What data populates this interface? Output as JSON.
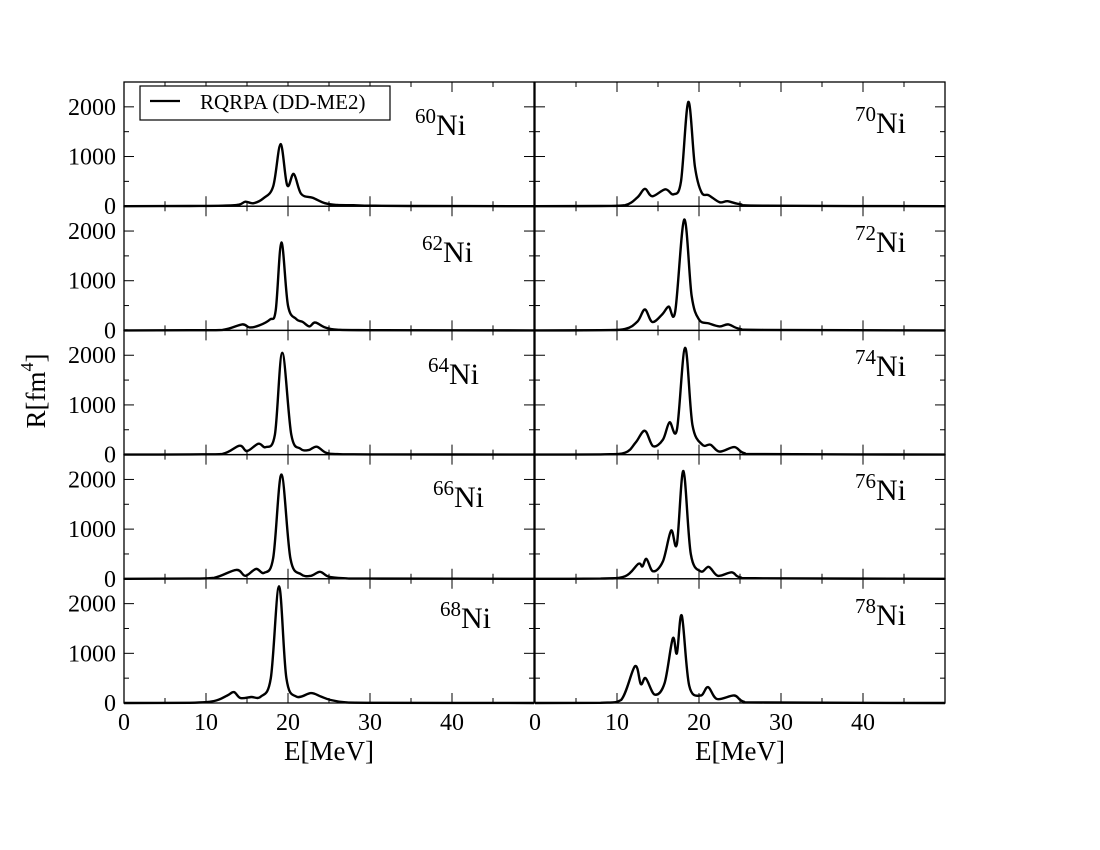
{
  "figure": {
    "ylabel": "R[fm",
    "ylabel_sup": "4",
    "ylabel_close": "]",
    "xlabel": "E[MeV]",
    "legend": "RQRPA (DD-ME2)",
    "line_color": "#000000",
    "background": "#ffffff"
  },
  "chart_data": [
    {
      "type": "line",
      "nucleus_mass": "60",
      "nucleus_symbol": "Ni",
      "column": "left",
      "row": 0,
      "xlim": [
        0,
        50
      ],
      "ylim": [
        0,
        2500
      ],
      "xticks": [
        0,
        10,
        20,
        30,
        40
      ],
      "yticks": [
        0,
        1000,
        2000
      ],
      "series": [
        {
          "name": "RQRPA (DD-ME2)",
          "x": [
            0,
            8,
            12,
            14,
            14.8,
            15.8,
            17,
            18.2,
            19.1,
            19.9,
            20.7,
            21.6,
            23,
            24.5,
            26,
            28,
            30,
            35,
            50
          ],
          "y": [
            0,
            5,
            10,
            30,
            90,
            60,
            160,
            400,
            1250,
            420,
            650,
            250,
            170,
            60,
            25,
            20,
            10,
            5,
            0
          ]
        }
      ]
    },
    {
      "type": "line",
      "nucleus_mass": "70",
      "nucleus_symbol": "Ni",
      "column": "right",
      "row": 0,
      "xlim": [
        0,
        50
      ],
      "ylim": [
        0,
        2500
      ],
      "xticks": [
        0,
        10,
        20,
        30,
        40
      ],
      "yticks": [
        0,
        1000,
        2000
      ],
      "series": [
        {
          "name": "RQRPA (DD-ME2)",
          "x": [
            0,
            8,
            11,
            12.5,
            13.4,
            14.3,
            15.9,
            16.9,
            17.8,
            18.7,
            19.5,
            20.3,
            21.2,
            22.5,
            23.5,
            25,
            28,
            50
          ],
          "y": [
            0,
            5,
            20,
            180,
            350,
            200,
            340,
            240,
            500,
            2100,
            800,
            280,
            220,
            80,
            100,
            40,
            10,
            0
          ]
        }
      ]
    },
    {
      "type": "line",
      "nucleus_mass": "62",
      "nucleus_symbol": "Ni",
      "column": "left",
      "row": 1,
      "xlim": [
        0,
        50
      ],
      "ylim": [
        0,
        2500
      ],
      "xticks": [
        0,
        10,
        20,
        30,
        40
      ],
      "yticks": [
        0,
        1000,
        2000
      ],
      "series": [
        {
          "name": "RQRPA (DD-ME2)",
          "x": [
            0,
            8,
            12,
            14.4,
            15.3,
            16.5,
            17.8,
            18.5,
            19.2,
            20,
            21,
            21.8,
            22.6,
            23.3,
            24.5,
            26,
            30,
            50
          ],
          "y": [
            0,
            5,
            10,
            120,
            60,
            100,
            220,
            400,
            1770,
            500,
            230,
            170,
            80,
            160,
            60,
            15,
            5,
            0
          ]
        }
      ]
    },
    {
      "type": "line",
      "nucleus_mass": "72",
      "nucleus_symbol": "Ni",
      "column": "right",
      "row": 1,
      "xlim": [
        0,
        50
      ],
      "ylim": [
        0,
        2500
      ],
      "xticks": [
        0,
        10,
        20,
        30,
        40
      ],
      "yticks": [
        0,
        1000,
        2000
      ],
      "series": [
        {
          "name": "RQRPA (DD-ME2)",
          "x": [
            0,
            8,
            11,
            12.5,
            13.4,
            14.3,
            15.5,
            16.3,
            17.1,
            18.2,
            19.1,
            20,
            21.2,
            22.5,
            23.6,
            25,
            28,
            50
          ],
          "y": [
            0,
            5,
            30,
            180,
            420,
            170,
            320,
            480,
            380,
            2230,
            700,
            220,
            140,
            80,
            120,
            30,
            10,
            0
          ]
        }
      ]
    },
    {
      "type": "line",
      "nucleus_mass": "64",
      "nucleus_symbol": "Ni",
      "column": "left",
      "row": 2,
      "xlim": [
        0,
        50
      ],
      "ylim": [
        0,
        2500
      ],
      "xticks": [
        0,
        10,
        20,
        30,
        40
      ],
      "yticks": [
        0,
        1000,
        2000
      ],
      "series": [
        {
          "name": "RQRPA (DD-ME2)",
          "x": [
            0,
            8,
            12,
            14.1,
            15,
            16.4,
            17.3,
            18.4,
            19.3,
            20.4,
            21.5,
            22.5,
            23.5,
            24.6,
            26,
            30,
            50
          ],
          "y": [
            0,
            5,
            15,
            180,
            70,
            220,
            150,
            400,
            2050,
            400,
            120,
            90,
            160,
            40,
            10,
            5,
            0
          ]
        }
      ]
    },
    {
      "type": "line",
      "nucleus_mass": "74",
      "nucleus_symbol": "Ni",
      "column": "right",
      "row": 2,
      "xlim": [
        0,
        50
      ],
      "ylim": [
        0,
        2500
      ],
      "xticks": [
        0,
        10,
        20,
        30,
        40
      ],
      "yticks": [
        0,
        1000,
        2000
      ],
      "series": [
        {
          "name": "RQRPA (DD-ME2)",
          "x": [
            0,
            8,
            11,
            12.3,
            13.4,
            14.4,
            15.6,
            16.4,
            17.3,
            18.3,
            19.2,
            20.4,
            21.4,
            22.5,
            24.3,
            25.5,
            28,
            50
          ],
          "y": [
            0,
            5,
            40,
            250,
            480,
            170,
            300,
            650,
            500,
            2150,
            600,
            200,
            200,
            60,
            150,
            30,
            10,
            0
          ]
        }
      ]
    },
    {
      "type": "line",
      "nucleus_mass": "66",
      "nucleus_symbol": "Ni",
      "column": "left",
      "row": 3,
      "xlim": [
        0,
        50
      ],
      "ylim": [
        0,
        2500
      ],
      "xticks": [
        0,
        10,
        20,
        30,
        40
      ],
      "yticks": [
        0,
        1000,
        2000
      ],
      "series": [
        {
          "name": "RQRPA (DD-ME2)",
          "x": [
            0,
            8,
            11,
            13.7,
            14.8,
            16.1,
            17.1,
            18.2,
            19.2,
            20.3,
            21.6,
            22.8,
            23.9,
            25,
            27,
            30,
            50
          ],
          "y": [
            0,
            5,
            20,
            180,
            60,
            200,
            120,
            420,
            2100,
            400,
            90,
            60,
            140,
            40,
            10,
            5,
            0
          ]
        }
      ]
    },
    {
      "type": "line",
      "nucleus_mass": "76",
      "nucleus_symbol": "Ni",
      "column": "right",
      "row": 3,
      "xlim": [
        0,
        50
      ],
      "ylim": [
        0,
        2500
      ],
      "xticks": [
        0,
        10,
        20,
        30,
        40
      ],
      "yticks": [
        0,
        1000,
        2000
      ],
      "series": [
        {
          "name": "RQRPA (DD-ME2)",
          "x": [
            0,
            8,
            11,
            12.6,
            13.1,
            13.6,
            14.4,
            15.6,
            16.6,
            17.3,
            18.1,
            19,
            20.2,
            21.2,
            22.3,
            24,
            25,
            28,
            50
          ],
          "y": [
            0,
            5,
            50,
            300,
            250,
            400,
            150,
            350,
            970,
            700,
            2170,
            500,
            150,
            240,
            60,
            130,
            30,
            10,
            0
          ]
        }
      ]
    },
    {
      "type": "line",
      "nucleus_mass": "68",
      "nucleus_symbol": "Ni",
      "column": "left",
      "row": 4,
      "xlim": [
        0,
        50
      ],
      "ylim": [
        0,
        2500
      ],
      "xticks": [
        0,
        10,
        20,
        30,
        40
      ],
      "yticks": [
        0,
        1000,
        2000
      ],
      "series": [
        {
          "name": "RQRPA (DD-ME2)",
          "x": [
            0,
            8,
            11,
            12.6,
            13.4,
            14.2,
            15.5,
            16.7,
            17.9,
            18.9,
            19.8,
            21,
            22.8,
            24,
            25.2,
            27,
            30,
            50
          ],
          "y": [
            0,
            5,
            40,
            150,
            220,
            100,
            120,
            130,
            500,
            2350,
            500,
            130,
            200,
            130,
            60,
            15,
            5,
            0
          ]
        }
      ]
    },
    {
      "type": "line",
      "nucleus_mass": "78",
      "nucleus_symbol": "Ni",
      "column": "right",
      "row": 4,
      "xlim": [
        0,
        50
      ],
      "ylim": [
        0,
        2500
      ],
      "xticks": [
        0,
        10,
        20,
        30,
        40
      ],
      "yticks": [
        0,
        1000,
        2000
      ],
      "series": [
        {
          "name": "RQRPA (DD-ME2)",
          "x": [
            0,
            8,
            10.5,
            12.2,
            12.9,
            13.5,
            14.6,
            15.8,
            16.8,
            17.3,
            17.9,
            18.8,
            20.2,
            21.1,
            22.2,
            24.3,
            25.4,
            28,
            50
          ],
          "y": [
            0,
            5,
            60,
            740,
            380,
            500,
            170,
            400,
            1300,
            1000,
            1760,
            350,
            150,
            320,
            80,
            150,
            30,
            10,
            0
          ]
        }
      ]
    }
  ]
}
